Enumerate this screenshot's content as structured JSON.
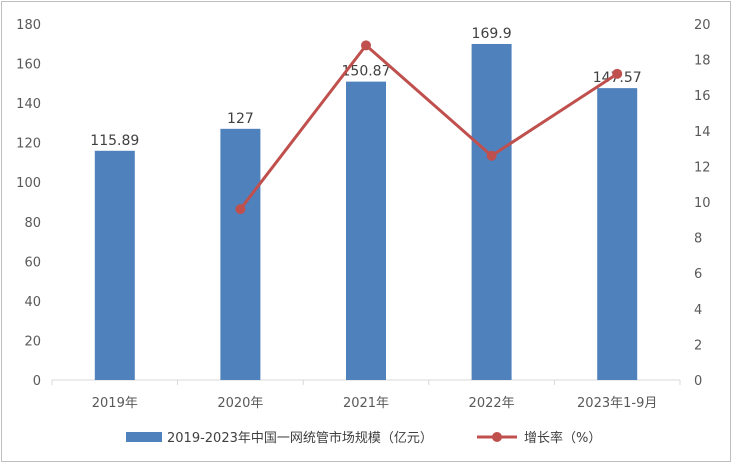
{
  "chart_data": {
    "type": "bar",
    "categories": [
      "2019年",
      "2020年",
      "2021年",
      "2022年",
      "2023年1-9月"
    ],
    "series": [
      {
        "name": "2019-2023年中国一网统管市场规模（亿元）",
        "type": "bar",
        "axis": "left",
        "color": "#4f81bd",
        "values": [
          115.89,
          127,
          150.87,
          169.9,
          147.57
        ],
        "labels": [
          "115.89",
          "127",
          "150.87",
          "169.9",
          "147.57"
        ]
      },
      {
        "name": "增长率（%）",
        "type": "line",
        "axis": "right",
        "color": "#c0504d",
        "values": [
          null,
          9.6,
          18.8,
          12.6,
          17.2
        ]
      }
    ],
    "y_left": {
      "min": 0,
      "max": 180,
      "step": 20
    },
    "y_right": {
      "min": 0,
      "max": 20,
      "step": 2
    },
    "grid": false,
    "legend_position": "bottom"
  }
}
